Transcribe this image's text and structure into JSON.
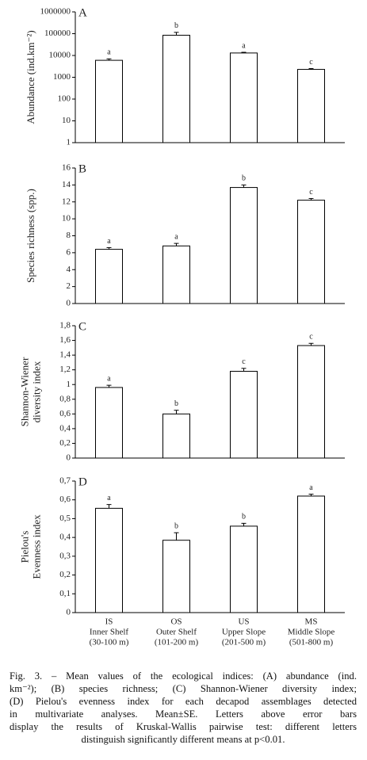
{
  "chart_data": [
    {
      "type": "bar",
      "panel": "A",
      "y_label": [
        "Abundance (ind.km⁻²)"
      ],
      "log_scale": true,
      "ylim": [
        1,
        1000000
      ],
      "yticks": [
        1,
        10,
        100,
        1000,
        10000,
        100000,
        1000000
      ],
      "color": "#ffffff",
      "edge_color": "#000000",
      "series": [
        {
          "values": [
            6000,
            85000,
            13000,
            2300
          ],
          "errors": [
            1000,
            30000,
            1000,
            200
          ],
          "letters": [
            "a",
            "b",
            "a",
            "c"
          ]
        }
      ]
    },
    {
      "type": "bar",
      "panel": "B",
      "y_label": [
        "Species  richness (spp.)"
      ],
      "ylim": [
        0,
        16
      ],
      "yticks": [
        0,
        2,
        4,
        6,
        8,
        10,
        12,
        14,
        16
      ],
      "color": "#ffffff",
      "edge_color": "#000000",
      "series": [
        {
          "values": [
            6.4,
            6.8,
            13.7,
            12.2
          ],
          "errors": [
            0.2,
            0.3,
            0.3,
            0.2
          ],
          "letters": [
            "a",
            "a",
            "b",
            "c"
          ]
        }
      ]
    },
    {
      "type": "bar",
      "panel": "C",
      "y_label": [
        "Shannon-Wiener",
        "diversity  index"
      ],
      "ylim": [
        0,
        1.8
      ],
      "yticks": [
        0,
        {
          "value": 0.2,
          "label": "0,2"
        },
        {
          "value": 0.4,
          "label": "0,4"
        },
        {
          "value": 0.6,
          "label": "0,6"
        },
        {
          "value": 0.8,
          "label": "0,8"
        },
        1,
        {
          "value": 1.2,
          "label": "1,2"
        },
        {
          "value": 1.4,
          "label": "1,4"
        },
        {
          "value": 1.6,
          "label": "1,6"
        },
        {
          "value": 1.8,
          "label": "1,8"
        }
      ],
      "color": "#ffffff",
      "edge_color": "#000000",
      "series": [
        {
          "values": [
            0.96,
            0.6,
            1.18,
            1.53
          ],
          "errors": [
            0.03,
            0.05,
            0.04,
            0.03
          ],
          "letters": [
            "a",
            "b",
            "c",
            "c"
          ]
        }
      ]
    },
    {
      "type": "bar",
      "panel": "D",
      "y_label": [
        "Pielou's",
        "Evenness index"
      ],
      "ylim": [
        0,
        0.7
      ],
      "yticks": [
        0,
        {
          "value": 0.1,
          "label": "0,1"
        },
        {
          "value": 0.2,
          "label": "0,2"
        },
        {
          "value": 0.3,
          "label": "0,3"
        },
        {
          "value": 0.4,
          "label": "0,4"
        },
        {
          "value": 0.5,
          "label": "0,5"
        },
        {
          "value": 0.6,
          "label": "0,6"
        },
        {
          "value": 0.7,
          "label": "0,7"
        }
      ],
      "color": "#ffffff",
      "edge_color": "#000000",
      "categories": [
        "IS",
        "OS",
        "US",
        "MS"
      ],
      "category_names": [
        "Inner Shelf",
        "Outer Shelf",
        "Upper Slope",
        "Middle Slope"
      ],
      "category_depths": [
        "(30-100 m)",
        "(101-200 m)",
        "(201-500 m)",
        "(501-800 m)"
      ],
      "series": [
        {
          "values": [
            0.555,
            0.385,
            0.46,
            0.62
          ],
          "errors": [
            0.02,
            0.04,
            0.015,
            0.01
          ],
          "letters": [
            "a",
            "b",
            "b",
            "a"
          ]
        }
      ]
    }
  ],
  "caption": [
    "Fig. 3. – Mean values of the ecological indices: (A) abundance (ind.",
    "km⁻²); (B) species richness; (C) Shannon-Wiener diversity index;",
    "(D) Pielou's evenness index for each decapod assemblages detected",
    "in multivariate analyses. Mean±SE. Letters above error bars",
    "display the results of Kruskal-Wallis pairwise test: different letters",
    "distinguish significantly different means at p<0.01."
  ]
}
